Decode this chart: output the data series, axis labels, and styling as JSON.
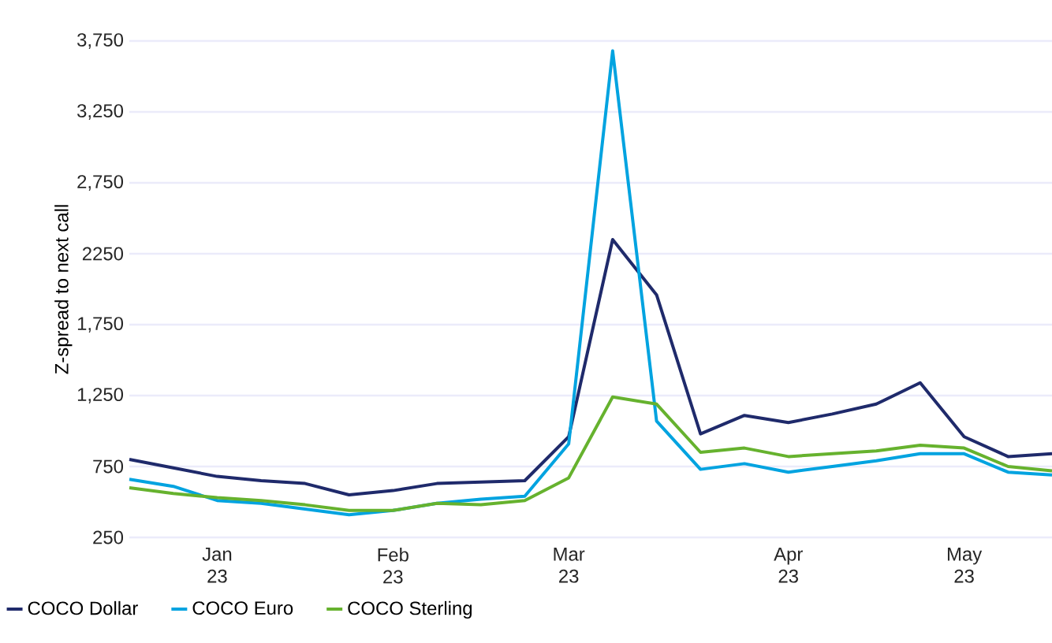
{
  "chart_data": {
    "type": "line",
    "ylabel": "Z-spread to next call",
    "categories": [
      null,
      null,
      "Jan 23",
      null,
      null,
      null,
      "Feb 23",
      null,
      null,
      null,
      "Mar 23",
      null,
      null,
      null,
      null,
      "Apr 23",
      null,
      null,
      null,
      "May 23",
      null,
      null
    ],
    "ylim": [
      250,
      3750
    ],
    "yticks": [
      250,
      750,
      {
        "value": 1250,
        "label": "1,250"
      },
      {
        "value": 1750,
        "label": "1,750"
      },
      2250,
      {
        "value": 2750,
        "label": "2,750"
      },
      {
        "value": 3250,
        "label": "3,250"
      },
      {
        "value": 3750,
        "label": "3,750"
      }
    ],
    "grid": "y",
    "legend": "bottom",
    "marker": "none",
    "line_style": "solid",
    "series": [
      {
        "name": "COCO Dollar",
        "color": "#1f2a6b",
        "values": [
          800,
          740,
          680,
          650,
          630,
          550,
          580,
          630,
          640,
          650,
          960,
          2350,
          1960,
          980,
          1110,
          1060,
          1120,
          1190,
          1340,
          960,
          820,
          840
        ]
      },
      {
        "name": "COCO Euro",
        "color": "#00a3e0",
        "values": [
          660,
          610,
          510,
          490,
          450,
          410,
          440,
          490,
          520,
          540,
          910,
          3680,
          1070,
          730,
          770,
          710,
          750,
          790,
          840,
          840,
          710,
          690
        ]
      },
      {
        "name": "COCO Sterling",
        "color": "#66b22e",
        "values": [
          600,
          560,
          530,
          510,
          480,
          440,
          440,
          490,
          480,
          510,
          670,
          1240,
          1190,
          850,
          880,
          820,
          840,
          860,
          900,
          880,
          750,
          720
        ]
      }
    ]
  }
}
